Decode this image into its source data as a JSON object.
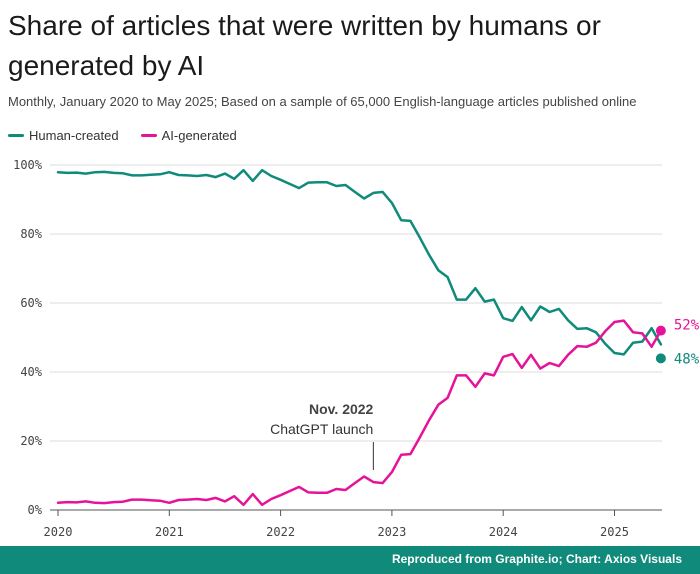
{
  "title": "Share of articles that were written by humans or generated by AI",
  "subtitle": "Monthly, January 2020 to May 2025; Based on a sample of 65,000 English-language articles published online",
  "legend": {
    "human": "Human-created",
    "ai": "AI-generated"
  },
  "colors": {
    "human": "#0f8a7b",
    "ai": "#e5139a"
  },
  "annotation": {
    "date": "Nov. 2022",
    "event": "ChatGPT launch",
    "month_index": 34
  },
  "end_labels": {
    "ai": "52%",
    "human": "48%"
  },
  "footer": "Reproduced from Graphite.io; Chart: Axios Visuals",
  "chart_data": {
    "type": "line",
    "x_start": "2020-01",
    "x_end": "2025-05",
    "x_ticks": [
      "2020",
      "2021",
      "2022",
      "2023",
      "2024",
      "2025"
    ],
    "y_ticks": [
      "0%",
      "20%",
      "40%",
      "60%",
      "80%",
      "100%"
    ],
    "ylim": [
      0,
      100
    ],
    "grid": true,
    "legend_position": "top-left",
    "series": [
      {
        "name": "Human-created",
        "values": [
          97.9,
          97.7,
          97.8,
          97.5,
          97.9,
          98.0,
          97.7,
          97.6,
          97.0,
          97.0,
          97.2,
          97.3,
          97.9,
          97.1,
          97.0,
          96.8,
          97.1,
          96.5,
          97.5,
          96.0,
          98.5,
          95.4,
          98.5,
          96.8,
          95.7,
          94.5,
          93.3,
          94.9,
          95.0,
          95.0,
          93.9,
          94.2,
          92.2,
          90.3,
          91.9,
          92.2,
          89.0,
          84.0,
          83.8,
          79.0,
          74.0,
          69.5,
          67.5,
          61.0,
          61.0,
          64.3,
          60.4,
          61.0,
          55.6,
          54.8,
          58.8,
          55.0,
          59.0,
          57.4,
          58.3,
          55.0,
          52.5,
          52.7,
          51.5,
          48.2,
          45.5,
          45.1,
          48.5,
          48.8,
          52.7,
          48.0
        ]
      },
      {
        "name": "AI-generated",
        "values": [
          2.1,
          2.3,
          2.2,
          2.5,
          2.1,
          2.0,
          2.3,
          2.4,
          3.0,
          3.0,
          2.8,
          2.7,
          2.1,
          2.9,
          3.0,
          3.2,
          2.9,
          3.5,
          2.5,
          4.0,
          1.5,
          4.6,
          1.5,
          3.2,
          4.3,
          5.5,
          6.7,
          5.1,
          5.0,
          5.0,
          6.1,
          5.8,
          7.8,
          9.7,
          8.1,
          7.8,
          11.0,
          16.0,
          16.2,
          21.0,
          26.0,
          30.5,
          32.5,
          39.0,
          39.0,
          35.7,
          39.6,
          39.0,
          44.4,
          45.2,
          41.2,
          45.0,
          41.0,
          42.6,
          41.7,
          45.0,
          47.5,
          47.3,
          48.5,
          51.8,
          54.5,
          54.9,
          51.5,
          51.2,
          47.3,
          52.0
        ]
      }
    ]
  }
}
